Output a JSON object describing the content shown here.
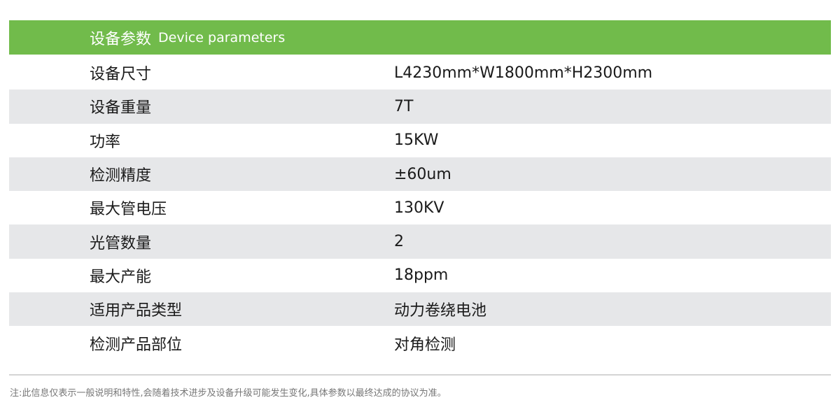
{
  "colors": {
    "accent": "#71bb4b",
    "stripe": "#e6e7e9"
  },
  "header": {
    "title_zh": "设备参数",
    "title_en": "Device parameters"
  },
  "rows": [
    {
      "label": "设备尺寸",
      "value": "L4230mm*W1800mm*H2300mm"
    },
    {
      "label": "设备重量",
      "value": "7T"
    },
    {
      "label": "功率",
      "value": "15KW"
    },
    {
      "label": "检测精度",
      "value": "±60um"
    },
    {
      "label": "最大管电压",
      "value": "130KV"
    },
    {
      "label": "光管数量",
      "value": "2"
    },
    {
      "label": "最大产能",
      "value": "18ppm"
    },
    {
      "label": "适用产品类型",
      "value": "动力卷绕电池"
    },
    {
      "label": "检测产品部位",
      "value": "对角检测"
    }
  ],
  "note": "注:此信息仅表示一般说明和特性,会随着技术进步及设备升级可能发生变化,具体参数以最终达成的协议为准。"
}
